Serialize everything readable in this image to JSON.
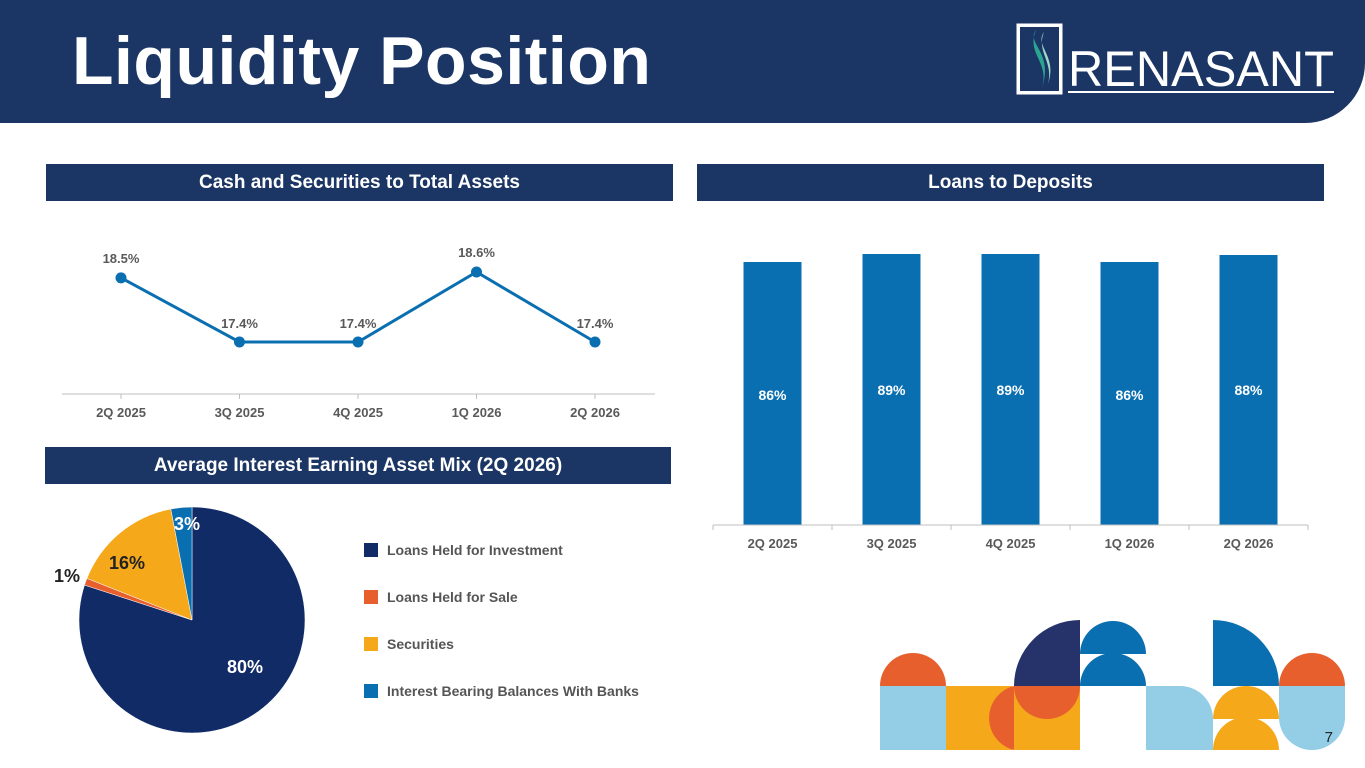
{
  "page": {
    "title": "Liquidity Position",
    "logo_text": "RENASANT",
    "page_number": "7"
  },
  "sections": {
    "cash_title": "Cash and Securities to Total Assets",
    "loans_title": "Loans to Deposits",
    "mix_title": "Average Interest Earning Asset Mix (2Q 2026)"
  },
  "colors": {
    "navy": "#1b3665",
    "blue": "#0a6fb0",
    "orange": "#e85f2e",
    "gold": "#f6a81b",
    "pie_navy": "#112b67",
    "light_blue": "#93cde6",
    "teal": "#2aa590"
  },
  "chart_data": [
    {
      "type": "line",
      "title": "Cash and Securities to Total Assets",
      "categories": [
        "2Q 2025",
        "3Q 2025",
        "4Q 2025",
        "1Q 2026",
        "2Q 2026"
      ],
      "values": [
        18.5,
        17.4,
        17.4,
        18.6,
        17.4
      ],
      "labels": [
        "18.5%",
        "17.4%",
        "17.4%",
        "18.6%",
        "17.4%"
      ],
      "ylim": [
        16.5,
        19.0
      ],
      "grid": false
    },
    {
      "type": "bar",
      "title": "Loans to Deposits",
      "categories": [
        "2Q 2025",
        "3Q 2025",
        "4Q 2025",
        "1Q 2026",
        "2Q 2026"
      ],
      "values": [
        86,
        89,
        89,
        86,
        88
      ],
      "labels": [
        "86%",
        "89%",
        "89%",
        "86%",
        "88%"
      ],
      "ylim": [
        0,
        95
      ],
      "grid": false
    },
    {
      "type": "pie",
      "title": "Average Interest Earning Asset Mix (2Q 2026)",
      "categories": [
        "Loans Held for Investment",
        "Loans Held for Sale",
        "Securities",
        "Interest Bearing Balances With Banks"
      ],
      "values": [
        80,
        1,
        16,
        3
      ],
      "labels": [
        "80%",
        "1%",
        "16%",
        "3%"
      ],
      "legend": "right"
    }
  ]
}
